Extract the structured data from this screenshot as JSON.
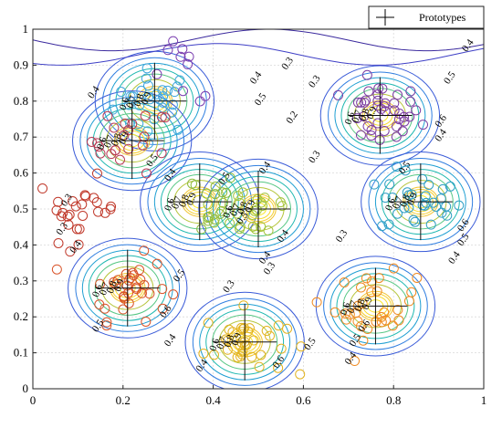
{
  "chart_data": {
    "type": "scatter",
    "subtype": "contour-with-scatter",
    "title": "",
    "xlabel": "",
    "ylabel": "",
    "xlim": [
      0,
      1
    ],
    "ylim": [
      0,
      1
    ],
    "grid": true,
    "legend": {
      "position": "top-right",
      "entries": [
        "Prototypes"
      ]
    },
    "x_ticks": [
      "0",
      "0.2",
      "0.4",
      "0.6",
      "0.8",
      "1"
    ],
    "y_ticks": [
      "0",
      "0.1",
      "0.2",
      "0.3",
      "0.4",
      "0.5",
      "0.6",
      "0.7",
      "0.8",
      "0.9",
      "1"
    ],
    "contour_levels": [
      0.1,
      0.2,
      0.3,
      0.4,
      0.5,
      0.6,
      0.7,
      0.8,
      0.9
    ],
    "prototypes": [
      {
        "x": 0.27,
        "y": 0.8,
        "color": "#5b7fd6"
      },
      {
        "x": 0.22,
        "y": 0.69,
        "color": "#9a5ab8"
      },
      {
        "x": 0.77,
        "y": 0.76,
        "color": "#7d3fa3"
      },
      {
        "x": 0.86,
        "y": 0.52,
        "color": "#2f9fc4"
      },
      {
        "x": 0.37,
        "y": 0.52,
        "color": "#7fb33e"
      },
      {
        "x": 0.5,
        "y": 0.5,
        "color": "#9fc23a"
      },
      {
        "x": 0.21,
        "y": 0.28,
        "color": "#d9542a"
      },
      {
        "x": 0.47,
        "y": 0.13,
        "color": "#e2b31e"
      },
      {
        "x": 0.76,
        "y": 0.23,
        "color": "#f08a20"
      }
    ],
    "scatter_groups": [
      {
        "cx": 0.27,
        "cy": 0.8,
        "color": "#3fa7dc",
        "n": 30
      },
      {
        "cx": 0.22,
        "cy": 0.69,
        "color": "#b83a55",
        "n": 22
      },
      {
        "cx": 0.77,
        "cy": 0.76,
        "color": "#7d3fa3",
        "n": 40
      },
      {
        "cx": 0.86,
        "cy": 0.52,
        "color": "#2f9fc4",
        "n": 32
      },
      {
        "cx": 0.37,
        "cy": 0.52,
        "color": "#8dbb3a",
        "n": 16
      },
      {
        "cx": 0.5,
        "cy": 0.5,
        "color": "#a2c43a",
        "n": 22
      },
      {
        "cx": 0.21,
        "cy": 0.28,
        "color": "#d9542a",
        "n": 34
      },
      {
        "cx": 0.47,
        "cy": 0.13,
        "color": "#e2b31e",
        "n": 36
      },
      {
        "cx": 0.76,
        "cy": 0.23,
        "color": "#f08a20",
        "n": 32
      },
      {
        "cx": 0.1,
        "cy": 0.5,
        "color": "#c0392b",
        "n": 26
      },
      {
        "cx": 0.34,
        "cy": 0.88,
        "color": "#7b3fb0",
        "n": 10
      }
    ],
    "contour_label_positions": [
      {
        "text": "0.4",
        "x": 0.5,
        "y": 0.86
      },
      {
        "text": "0.3",
        "x": 0.57,
        "y": 0.9
      },
      {
        "text": "0.3",
        "x": 0.63,
        "y": 0.85
      },
      {
        "text": "0.2",
        "x": 0.58,
        "y": 0.75
      },
      {
        "text": "0.5",
        "x": 0.51,
        "y": 0.8
      },
      {
        "text": "0.4",
        "x": 0.14,
        "y": 0.82
      },
      {
        "text": "0.4",
        "x": 0.97,
        "y": 0.95
      },
      {
        "text": "0.5",
        "x": 0.93,
        "y": 0.86
      },
      {
        "text": "0.4",
        "x": 0.91,
        "y": 0.7
      },
      {
        "text": "0.6",
        "x": 0.91,
        "y": 0.74
      },
      {
        "text": "0.5",
        "x": 0.83,
        "y": 0.61
      },
      {
        "text": "0.4",
        "x": 0.52,
        "y": 0.61
      },
      {
        "text": "0.3",
        "x": 0.63,
        "y": 0.64
      },
      {
        "text": "0.5",
        "x": 0.27,
        "y": 0.63
      },
      {
        "text": "0.4",
        "x": 0.31,
        "y": 0.59
      },
      {
        "text": "0.3",
        "x": 0.08,
        "y": 0.52
      },
      {
        "text": "0.3",
        "x": 0.07,
        "y": 0.44
      },
      {
        "text": "0.4",
        "x": 0.1,
        "y": 0.39
      },
      {
        "text": "0.4",
        "x": 0.52,
        "y": 0.36
      },
      {
        "text": "0.3",
        "x": 0.53,
        "y": 0.33
      },
      {
        "text": "0.3",
        "x": 0.44,
        "y": 0.28
      },
      {
        "text": "0.3",
        "x": 0.69,
        "y": 0.42
      },
      {
        "text": "0.4",
        "x": 0.94,
        "y": 0.36
      },
      {
        "text": "0.5",
        "x": 0.96,
        "y": 0.41
      },
      {
        "text": "0.6",
        "x": 0.96,
        "y": 0.45
      },
      {
        "text": "0.5",
        "x": 0.33,
        "y": 0.31
      },
      {
        "text": "0.5",
        "x": 0.15,
        "y": 0.17
      },
      {
        "text": "0.6",
        "x": 0.3,
        "y": 0.21
      },
      {
        "text": "0.4",
        "x": 0.31,
        "y": 0.13
      },
      {
        "text": "0.4",
        "x": 0.38,
        "y": 0.06
      },
      {
        "text": "0.5",
        "x": 0.62,
        "y": 0.12
      },
      {
        "text": "0.6",
        "x": 0.55,
        "y": 0.07
      },
      {
        "text": "0.4",
        "x": 0.71,
        "y": 0.08
      },
      {
        "text": "0.5",
        "x": 0.72,
        "y": 0.13
      },
      {
        "text": "0.6",
        "x": 0.74,
        "y": 0.17
      },
      {
        "text": "0.5",
        "x": 0.47,
        "y": 0.47
      },
      {
        "text": "0.4",
        "x": 0.56,
        "y": 0.42
      },
      {
        "text": "0.5",
        "x": 0.43,
        "y": 0.58
      }
    ]
  }
}
